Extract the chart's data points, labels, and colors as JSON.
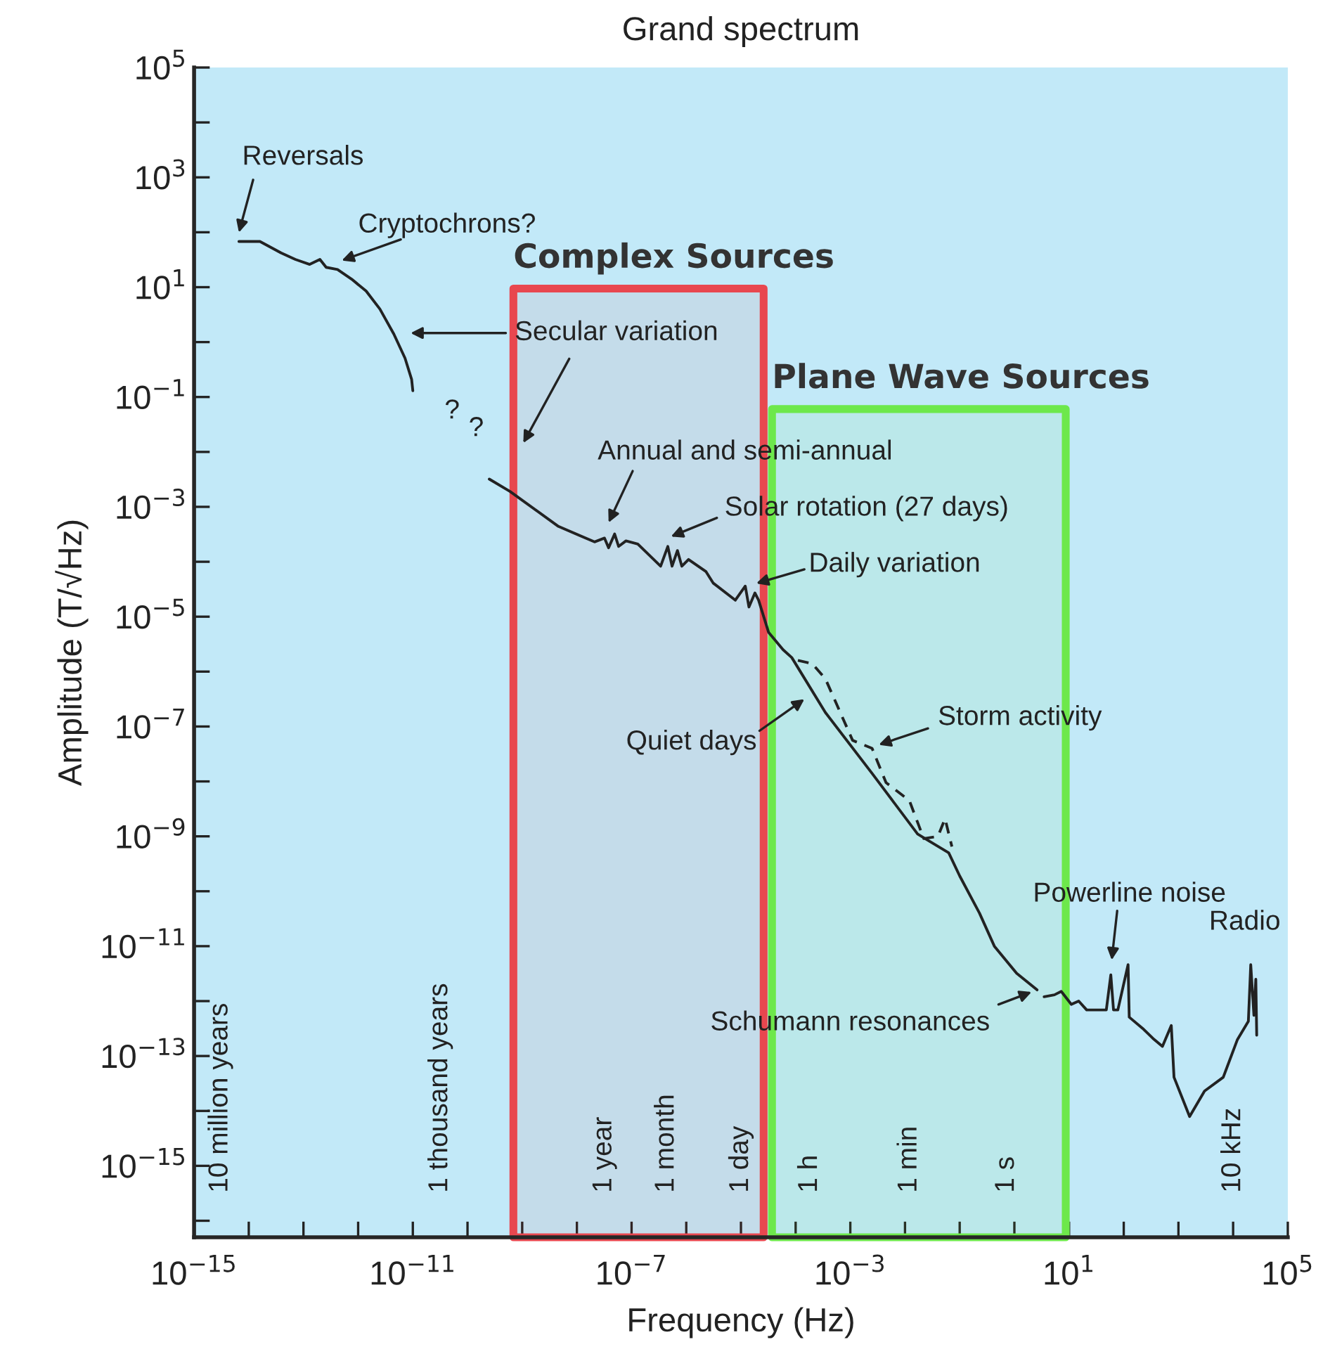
{
  "chart_data": {
    "type": "line",
    "title": "Grand spectrum",
    "xlabel": "Frequency (Hz)",
    "ylabel": "Amplitude (T/√Hz)",
    "log": "xy",
    "xlim": [
      1e-15,
      100000.0
    ],
    "ylim": [
      5e-17,
      100000.0
    ],
    "xticks": [
      {
        "value": 1e-15,
        "label": "10$^{−15}$"
      },
      {
        "value": 1e-14,
        "label": null
      },
      {
        "value": 1e-13,
        "label": null
      },
      {
        "value": 1e-12,
        "label": null
      },
      {
        "value": 1e-11,
        "label": "10$^{−11}$"
      },
      {
        "value": 1e-10,
        "label": null
      },
      {
        "value": 1e-09,
        "label": null
      },
      {
        "value": 1e-08,
        "label": null
      },
      {
        "value": 1e-07,
        "label": "10$^{−7}$"
      },
      {
        "value": 1e-06,
        "label": null
      },
      {
        "value": 1e-05,
        "label": null
      },
      {
        "value": 0.0001,
        "label": null
      },
      {
        "value": 0.001,
        "label": "10$^{−3}$"
      },
      {
        "value": 0.01,
        "label": null
      },
      {
        "value": 0.1,
        "label": null
      },
      {
        "value": 1,
        "label": null
      },
      {
        "value": 10,
        "label": "10$^{1}$"
      },
      {
        "value": 100,
        "label": null
      },
      {
        "value": 1000,
        "label": null
      },
      {
        "value": 10000,
        "label": null
      },
      {
        "value": 100000,
        "label": "10$^{5}$"
      }
    ],
    "yticks": [
      {
        "value": 100000.0,
        "label": "10$^{5}$"
      },
      {
        "value": 10000.0,
        "label": null
      },
      {
        "value": 1000.0,
        "label": "10$^{3}$"
      },
      {
        "value": 100.0,
        "label": null
      },
      {
        "value": 10,
        "label": "10$^{1}$"
      },
      {
        "value": 1,
        "label": null
      },
      {
        "value": 0.1,
        "label": "10$^{−1}$"
      },
      {
        "value": 0.01,
        "label": null
      },
      {
        "value": 0.001,
        "label": "10$^{−3}$"
      },
      {
        "value": 0.0001,
        "label": null
      },
      {
        "value": 1e-05,
        "label": "10$^{−5}$"
      },
      {
        "value": 1e-06,
        "label": null
      },
      {
        "value": 1e-07,
        "label": "10$^{−7}$"
      },
      {
        "value": 1e-08,
        "label": null
      },
      {
        "value": 1e-09,
        "label": "10$^{−9}$"
      },
      {
        "value": 1e-10,
        "label": null
      },
      {
        "value": 1e-11,
        "label": "10$^{−11}$"
      },
      {
        "value": 1e-12,
        "label": null
      },
      {
        "value": 1e-13,
        "label": "10$^{−13}$"
      },
      {
        "value": 1e-14,
        "label": null
      },
      {
        "value": 1e-15,
        "label": "10$^{−15}$"
      },
      {
        "value": 1e-16,
        "label": null
      }
    ],
    "series": [
      {
        "color": "#222222",
        "line_style": "solid",
        "x": [
          6.6e-15,
          1.6e-14,
          3.9e-14,
          7.1e-14,
          1.3e-13,
          2e-13,
          2.6e-13,
          4.2e-13,
          7.6e-13,
          1.4e-12,
          2.5e-12,
          4.5e-12,
          7.2e-12,
          9.5e-12,
          1e-11,
          3e-11,
          2.5e-10,
          6e-10,
          4.6e-09,
          2.1e-08,
          3.2e-08,
          3.8e-08,
          4.9e-08,
          5.8e-08,
          7.9e-08,
          1.3e-07,
          3.4e-07,
          4.6e-07,
          5.5e-07,
          6.9e-07,
          8.3e-07,
          1.1e-06,
          2.3e-06,
          3.1e-06,
          7.9e-06,
          1.2e-05,
          1.4e-05,
          1.8e-05,
          2.1e-05,
          3.2e-05,
          5.9e-05,
          8.5e-05,
          0.00035,
          0.0025,
          0.017,
          0.026,
          0.063,
          0.1,
          0.23,
          0.43,
          1.1,
          2.6,
          3.2,
          3.5,
          5.4,
          7.2,
          11,
          15,
          21,
          48,
          58,
          65,
          78,
          120,
          126,
          220,
          340,
          510,
          740,
          830,
          1600,
          3000,
          6600,
          12000,
          19000,
          21000,
          24000,
          26000,
          27000
        ],
        "values": [
          68,
          68,
          42,
          32,
          26,
          32,
          23,
          21,
          14,
          8.5,
          4,
          1.4,
          0.51,
          0.21,
          0.13,
          null,
          0.0032,
          0.0019,
          0.00044,
          0.00023,
          0.00027,
          0.00018,
          0.00032,
          0.00019,
          0.00024,
          0.00021,
          8.3e-05,
          0.00019,
          8.3e-05,
          0.00016,
          8.3e-05,
          0.00011,
          6.6e-05,
          4.1e-05,
          2e-05,
          3.6e-05,
          1.5e-05,
          2.7e-05,
          2e-05,
          5.2e-06,
          2.5e-06,
          1.8e-06,
          1.8e-07,
          1.4e-08,
          1.1e-09,
          8.5e-10,
          5e-10,
          1.9e-10,
          4e-11,
          1e-11,
          3.2e-12,
          1.6e-12,
          null,
          1.2e-12,
          1.3e-12,
          1.5e-12,
          8.7e-13,
          1e-12,
          6.9e-13,
          6.9e-13,
          3e-12,
          6.9e-13,
          6.9e-13,
          4.6e-12,
          5.1e-13,
          3.2e-13,
          2.1e-13,
          1.5e-13,
          3.6e-13,
          4.1e-14,
          7.9e-15,
          2.3e-14,
          4.1e-14,
          2e-13,
          4.3e-13,
          4.6e-12,
          5.5e-13,
          2.5e-12,
          2.4e-13
        ]
      },
      {
        "color": "#222222",
        "line_style": "dashed",
        "x": [
          0.00011,
          0.0002,
          0.00035,
          0.0011,
          0.0025,
          0.0045,
          0.012,
          0.022,
          0.04,
          0.054,
          0.072
        ],
        "values": [
          1.6e-06,
          1.4e-06,
          7.4e-07,
          5.6e-08,
          4e-08,
          9.5e-09,
          4.5e-09,
          9.1e-10,
          1e-09,
          2.1e-09,
          6.5e-10
        ]
      }
    ],
    "bands": [
      {
        "axis": "x",
        "from": 6.9e-10,
        "to": 2.6e-05,
        "label": "Complex Sources",
        "color": "#e8474f"
      },
      {
        "axis": "x",
        "from": 3.7e-05,
        "to": 8.7,
        "label": "Plane Wave Sources",
        "color": "#6de84b"
      }
    ],
    "annotations": [
      "Reversals",
      "Cryptochrons?",
      "Secular variation",
      "Annual and semi-annual",
      "Solar rotation (27 days)",
      "Daily variation",
      "Quiet days",
      "Storm activity",
      {
        "text": "Schumann resonances",
        "x": 2.6,
        "y": 1.6e-12
      },
      "Powerline noise",
      "Radio",
      "?",
      "?",
      "10 million years",
      "1 thousand years",
      "1 year",
      "1 month",
      "1 day",
      "1 h",
      "1 min",
      "1 s",
      "10 kHz"
    ]
  }
}
